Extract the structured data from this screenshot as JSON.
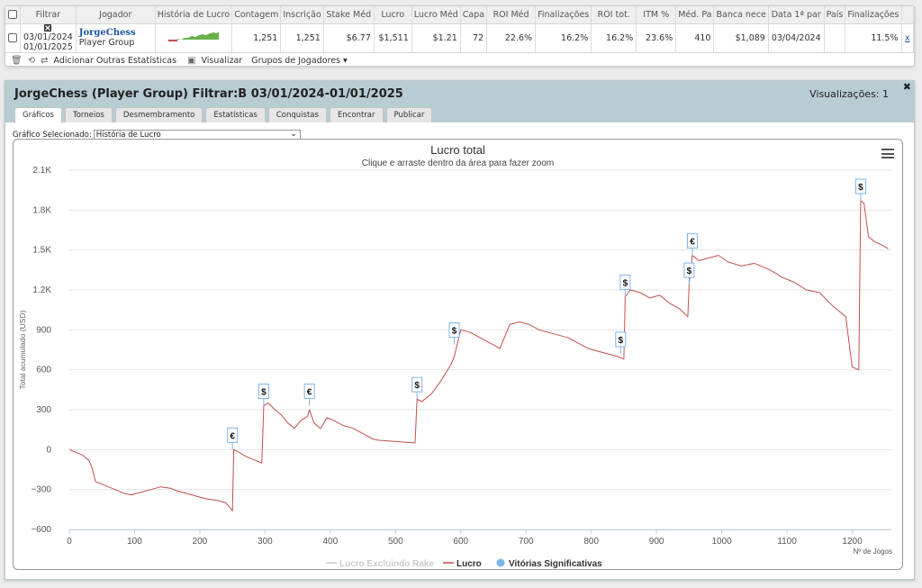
{
  "table": {
    "headers": [
      "Filtrar",
      "Jogador",
      "História de Lucro",
      "Contagem",
      "Inscrição",
      "Stake Méd",
      "Lucro",
      "Lucro Méd",
      "Capa",
      "ROI Méd",
      "Finalizações",
      "ROI tot.",
      "ITM %",
      "Méd. Pa",
      "Banca nece",
      "Data 1ª par",
      "País",
      "Finalizações"
    ],
    "row": {
      "date_from": "03/01/2024",
      "date_to": "01/01/2025",
      "player_name": "JorgeChess",
      "player_group": "Player Group",
      "contagem": "1,251",
      "inscricao": "1,251",
      "stake_med": "$6.77",
      "lucro": "$1,511",
      "lucro_med": "$1.21",
      "capa": "72",
      "roi_med": "22.6%",
      "finalizacoes": "16.2%",
      "roi_tot": "16.2%",
      "itm": "23.6%",
      "med_pa": "410",
      "banca": "$1,089",
      "data_primeira": "03/04/2024",
      "pais": "",
      "finalizacoes2": "11.5%",
      "remove": "x"
    }
  },
  "toolbar": {
    "add_stats": "Adicionar Outras Estatísticas",
    "view": "Visualizar",
    "groups": "Grupos de Jogadores ▾"
  },
  "panel": {
    "title": "JorgeChess (Player Group) Filtrar:B 03/01/2024-01/01/2025",
    "views": "Visualizações: 1",
    "close": "✖",
    "tabs": [
      "Gráficos",
      "Torneios",
      "Desmembramento",
      "Estatísticas",
      "Conquistas",
      "Encontrar",
      "Publicar"
    ],
    "select_label": "Gráfico Selecionado:",
    "select_value": "História de Lucro"
  },
  "colors": {
    "line": "#c0504d",
    "marker": "#7cb5ec",
    "accent": "#1b53a0"
  },
  "chart_data": {
    "type": "line",
    "title": "Lucro total",
    "subtitle": "Clique e arraste dentro da área para fazer zoom",
    "xlabel": "Nº de Jogos",
    "ylabel": "Total acumulado (USD)",
    "xlim": [
      0,
      1260
    ],
    "ylim": [
      -600,
      2100
    ],
    "xticks": [
      "0",
      "100",
      "200",
      "300",
      "400",
      "500",
      "600",
      "700",
      "800",
      "900",
      "1000",
      "1100",
      "1200"
    ],
    "yticks": [
      "−600",
      "−300",
      "0",
      "300",
      "600",
      "900",
      "1.2K",
      "1.5K",
      "1.8K",
      "2.1K"
    ],
    "legend": [
      "Lucro Excluindo Rake",
      "Lucro",
      "Vitórias Significativas"
    ],
    "series": [
      {
        "name": "Lucro",
        "x": [
          0,
          10,
          20,
          30,
          35,
          40,
          55,
          70,
          85,
          95,
          110,
          125,
          140,
          155,
          165,
          180,
          195,
          210,
          225,
          240,
          250,
          252,
          260,
          270,
          280,
          295,
          298,
          305,
          315,
          325,
          335,
          345,
          355,
          365,
          368,
          375,
          385,
          395,
          405,
          420,
          435,
          450,
          465,
          475,
          530,
          533,
          540,
          555,
          570,
          580,
          585,
          590,
          595,
          600,
          615,
          630,
          645,
          660,
          675,
          690,
          705,
          720,
          735,
          750,
          765,
          780,
          795,
          810,
          825,
          840,
          850,
          852,
          860,
          875,
          890,
          905,
          920,
          935,
          948,
          950,
          955,
          965,
          980,
          995,
          1010,
          1030,
          1050,
          1070,
          1085,
          1090,
          1110,
          1130,
          1150,
          1170,
          1190,
          1200,
          1210,
          1213,
          1218,
          1225,
          1235,
          1245,
          1255
        ],
        "y": [
          0,
          -20,
          -40,
          -80,
          -140,
          -240,
          -270,
          -300,
          -330,
          -340,
          -320,
          -300,
          -280,
          -290,
          -310,
          -330,
          -350,
          -370,
          -380,
          -400,
          -460,
          0,
          -20,
          -50,
          -70,
          -100,
          330,
          350,
          300,
          260,
          200,
          160,
          220,
          250,
          300,
          200,
          160,
          240,
          220,
          180,
          160,
          120,
          80,
          70,
          50,
          380,
          360,
          420,
          520,
          600,
          640,
          700,
          800,
          900,
          880,
          840,
          800,
          760,
          940,
          960,
          940,
          900,
          880,
          860,
          840,
          800,
          760,
          740,
          720,
          700,
          680,
          1150,
          1200,
          1180,
          1140,
          1160,
          1100,
          1060,
          1000,
          1250,
          1460,
          1420,
          1440,
          1460,
          1410,
          1380,
          1400,
          1360,
          1320,
          1300,
          1260,
          1200,
          1180,
          1080,
          1000,
          620,
          600,
          1870,
          1850,
          1600,
          1560,
          1540,
          1510
        ]
      }
    ],
    "significant_wins": [
      {
        "x": 250,
        "y": 0,
        "label": "€"
      },
      {
        "x": 298,
        "y": 330,
        "label": "$"
      },
      {
        "x": 368,
        "y": 330,
        "label": "€"
      },
      {
        "x": 533,
        "y": 380,
        "label": "$"
      },
      {
        "x": 590,
        "y": 790,
        "label": "$"
      },
      {
        "x": 845,
        "y": 720,
        "label": "$"
      },
      {
        "x": 852,
        "y": 1150,
        "label": "$"
      },
      {
        "x": 950,
        "y": 1240,
        "label": "$"
      },
      {
        "x": 955,
        "y": 1460,
        "label": "€"
      },
      {
        "x": 1213,
        "y": 1870,
        "label": "$"
      }
    ]
  }
}
